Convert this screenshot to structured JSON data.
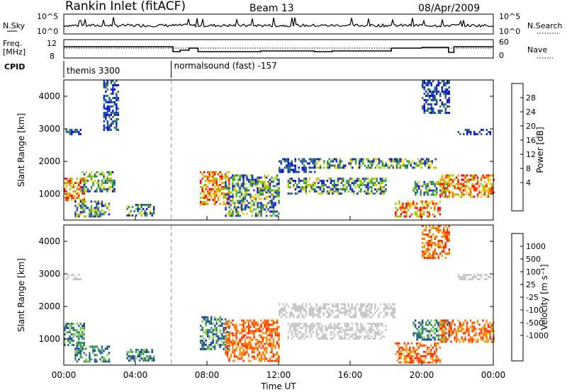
{
  "header": {
    "title": "Rankin Inlet (fitACF)",
    "beam": "Beam 13",
    "date": "08/Apr/2009"
  },
  "strip_labels": {
    "nsky": "N.Sky",
    "nsearch": "N.Search",
    "freq": "Freq.",
    "freq_unit": "[MHz]",
    "nave": "Nave",
    "cpid": "CPID"
  },
  "strip_ticks": {
    "nsky_top": "10^5",
    "nsky_bottom": "10^0",
    "nsearch_top": "10^5",
    "nsearch_bottom": "10^0",
    "freq_top": "12",
    "freq_bottom": "8",
    "nave_top": "60",
    "nave_bottom": "0"
  },
  "cpid_segments": [
    {
      "label": "themis 3300",
      "start_hour": 0.0
    },
    {
      "label": "normalsound (fast) -157",
      "start_hour": 6.0
    }
  ],
  "chart_data": [
    {
      "type": "heatmap",
      "name": "power",
      "ylabel": "Slant Range [km]",
      "colorbar_label": "Power [dB]",
      "ylim": [
        200,
        4500
      ],
      "xlim": [
        0,
        24
      ],
      "yticks": [
        1000,
        2000,
        3000,
        4000
      ],
      "colorbar_ticks": [
        "28",
        "24",
        "20",
        "16",
        "12",
        "8",
        "4"
      ],
      "colorbar_colors": [
        "#ff0000",
        "#ff4000",
        "#ff8c00",
        "#f2c400",
        "#8fd000",
        "#2fa43c",
        "#2f7a6e",
        "#1f4aa8",
        "#1010e6"
      ],
      "regions": [
        {
          "x0": 0.0,
          "x1": 1.1,
          "y0": 800,
          "y1": 1500,
          "level": "high"
        },
        {
          "x0": 0.1,
          "x1": 0.9,
          "y0": 2850,
          "y1": 3000,
          "level": "low"
        },
        {
          "x0": 0.6,
          "x1": 2.5,
          "y0": 300,
          "y1": 800,
          "level": "mid"
        },
        {
          "x0": 1.0,
          "x1": 2.8,
          "y0": 1100,
          "y1": 1700,
          "level": "mid"
        },
        {
          "x0": 2.2,
          "x1": 3.0,
          "y0": 3000,
          "y1": 4500,
          "level": "low"
        },
        {
          "x0": 3.5,
          "x1": 5.0,
          "y0": 350,
          "y1": 700,
          "level": "mid"
        },
        {
          "x0": 7.6,
          "x1": 9.2,
          "y0": 700,
          "y1": 1700,
          "level": "high"
        },
        {
          "x0": 9.0,
          "x1": 12.0,
          "y0": 300,
          "y1": 1600,
          "level": "mid"
        },
        {
          "x0": 12.0,
          "x1": 14.0,
          "y0": 1700,
          "y1": 2100,
          "level": "low"
        },
        {
          "x0": 12.5,
          "x1": 18.0,
          "y0": 1000,
          "y1": 1500,
          "level": "mid"
        },
        {
          "x0": 14.0,
          "x1": 20.8,
          "y0": 1800,
          "y1": 2100,
          "level": "mid"
        },
        {
          "x0": 18.5,
          "x1": 21.0,
          "y0": 300,
          "y1": 800,
          "level": "high"
        },
        {
          "x0": 19.5,
          "x1": 21.5,
          "y0": 1000,
          "y1": 1400,
          "level": "mid"
        },
        {
          "x0": 21.0,
          "x1": 24.0,
          "y0": 900,
          "y1": 1600,
          "level": "high"
        },
        {
          "x0": 20.0,
          "x1": 21.5,
          "y0": 3500,
          "y1": 4500,
          "level": "low"
        },
        {
          "x0": 22.0,
          "x1": 23.8,
          "y0": 2850,
          "y1": 3000,
          "level": "low"
        }
      ]
    },
    {
      "type": "heatmap",
      "name": "velocity",
      "xlabel": "Time UT",
      "ylabel": "Slant Range [km]",
      "colorbar_label": "Velocity [m s⁻¹]",
      "ylim": [
        200,
        4500
      ],
      "xlim": [
        0,
        24
      ],
      "yticks": [
        1000,
        2000,
        3000,
        4000
      ],
      "xticks": [
        "00:00",
        "04:00",
        "08:00",
        "12:00",
        "16:00",
        "20:00",
        "00:00"
      ],
      "colorbar_ticks": [
        "1000",
        "500",
        "100",
        "25",
        "-25",
        "-100",
        "-500",
        "-1000"
      ],
      "colorbar_colors": [
        "#1c3fa8",
        "#2a6a86",
        "#3a9a5a",
        "#7ed04a",
        "#c8c8c8",
        "#c8c8c8",
        "#f0a020",
        "#ff7000",
        "#ff3000",
        "#e00000"
      ],
      "regions": [
        {
          "x0": 0.0,
          "x1": 1.1,
          "y0": 800,
          "y1": 1500,
          "level": "pos"
        },
        {
          "x0": 0.1,
          "x1": 0.9,
          "y0": 2850,
          "y1": 3000,
          "level": "zero"
        },
        {
          "x0": 0.6,
          "x1": 2.5,
          "y0": 300,
          "y1": 800,
          "level": "pos"
        },
        {
          "x0": 3.5,
          "x1": 5.0,
          "y0": 350,
          "y1": 700,
          "level": "pos"
        },
        {
          "x0": 7.6,
          "x1": 9.2,
          "y0": 700,
          "y1": 1700,
          "level": "pos"
        },
        {
          "x0": 9.0,
          "x1": 12.0,
          "y0": 300,
          "y1": 1600,
          "level": "neg"
        },
        {
          "x0": 12.0,
          "x1": 18.5,
          "y0": 1700,
          "y1": 2100,
          "level": "zero"
        },
        {
          "x0": 12.5,
          "x1": 18.0,
          "y0": 1000,
          "y1": 1500,
          "level": "zero"
        },
        {
          "x0": 18.5,
          "x1": 21.0,
          "y0": 250,
          "y1": 900,
          "level": "neg"
        },
        {
          "x0": 19.5,
          "x1": 21.5,
          "y0": 1000,
          "y1": 1600,
          "level": "pos"
        },
        {
          "x0": 21.0,
          "x1": 24.0,
          "y0": 900,
          "y1": 1600,
          "level": "neg"
        },
        {
          "x0": 20.0,
          "x1": 21.5,
          "y0": 3500,
          "y1": 4500,
          "level": "neg"
        },
        {
          "x0": 22.0,
          "x1": 23.8,
          "y0": 2850,
          "y1": 3000,
          "level": "zero"
        }
      ]
    }
  ]
}
